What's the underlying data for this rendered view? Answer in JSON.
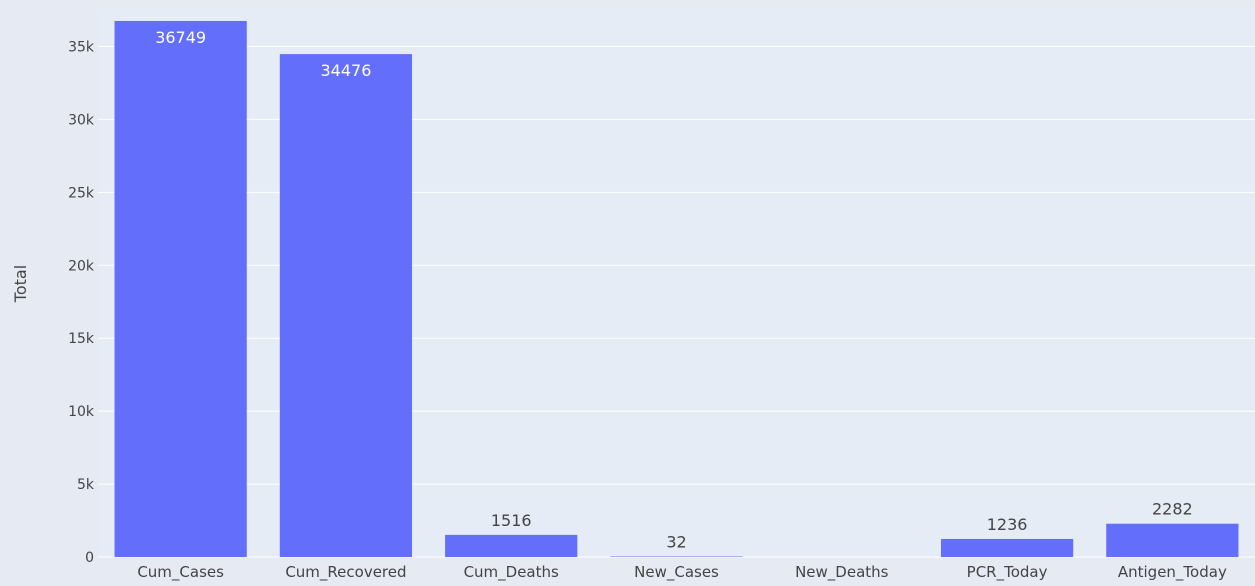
{
  "chart_data": {
    "type": "bar",
    "title": "",
    "xlabel": "",
    "ylabel": "Total",
    "ylim": [
      0,
      37500
    ],
    "grid": true,
    "legend": "none",
    "categories": [
      "Cum_Cases",
      "Cum_Recovered",
      "Cum_Deaths",
      "New_Cases",
      "New_Deaths",
      "PCR_Today",
      "Antigen_Today"
    ],
    "values": [
      36749,
      34476,
      1516,
      32,
      0,
      1236,
      2282
    ],
    "data_labels": [
      "36749",
      "34476",
      "1516",
      "32",
      "",
      "1236",
      "2282"
    ],
    "y_ticks": [
      0,
      5000,
      10000,
      15000,
      20000,
      25000,
      30000,
      35000
    ],
    "y_tick_labels": [
      "0",
      "5k",
      "10k",
      "15k",
      "20k",
      "25k",
      "30k",
      "35k"
    ],
    "colors": {
      "bar": "#636efa",
      "plot_bg": "#e5ecf6",
      "page_bg": "#e6eaf3",
      "grid": "#ffffff",
      "text": "#444444",
      "label_inside": "#ffffff"
    }
  }
}
